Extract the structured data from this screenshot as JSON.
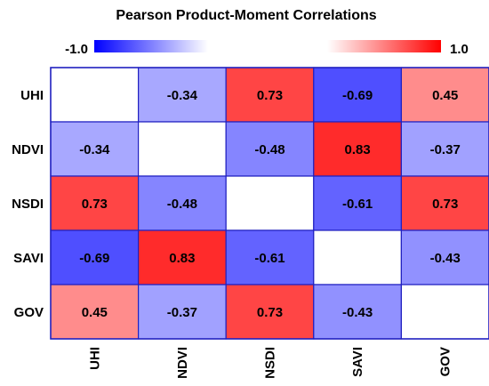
{
  "chart_data": {
    "type": "heatmap",
    "title": "Pearson Product-Moment Correlations",
    "rows": [
      "UHI",
      "NDVI",
      "NSDI",
      "SAVI",
      "GOV"
    ],
    "columns": [
      "UHI",
      "NDVI",
      "NSDI",
      "SAVI",
      "GOV"
    ],
    "values": [
      [
        null,
        -0.34,
        0.73,
        -0.69,
        0.45
      ],
      [
        -0.34,
        null,
        -0.48,
        0.83,
        -0.37
      ],
      [
        0.73,
        -0.48,
        null,
        -0.61,
        0.73
      ],
      [
        -0.69,
        0.83,
        -0.61,
        null,
        -0.43
      ],
      [
        0.45,
        -0.37,
        0.73,
        -0.43,
        null
      ]
    ],
    "cell_labels": [
      [
        "",
        "-0.34",
        "0.73",
        "-0.69",
        "0.45"
      ],
      [
        "-0.34",
        "",
        "-0.48",
        "0.83",
        "-0.37"
      ],
      [
        "0.73",
        "-0.48",
        "",
        "-0.61",
        "0.73"
      ],
      [
        "-0.69",
        "0.83",
        "-0.61",
        "",
        "-0.43"
      ],
      [
        "0.45",
        "-0.37",
        "0.73",
        "-0.43",
        ""
      ]
    ],
    "colorbar": {
      "min": -1.0,
      "max": 1.0,
      "min_label": "-1.0",
      "max_label": "1.0"
    },
    "colors": {
      "negative": "#0000ff",
      "positive": "#ff0000",
      "neutral": "#ffffff",
      "grid": "#2020c0"
    }
  }
}
